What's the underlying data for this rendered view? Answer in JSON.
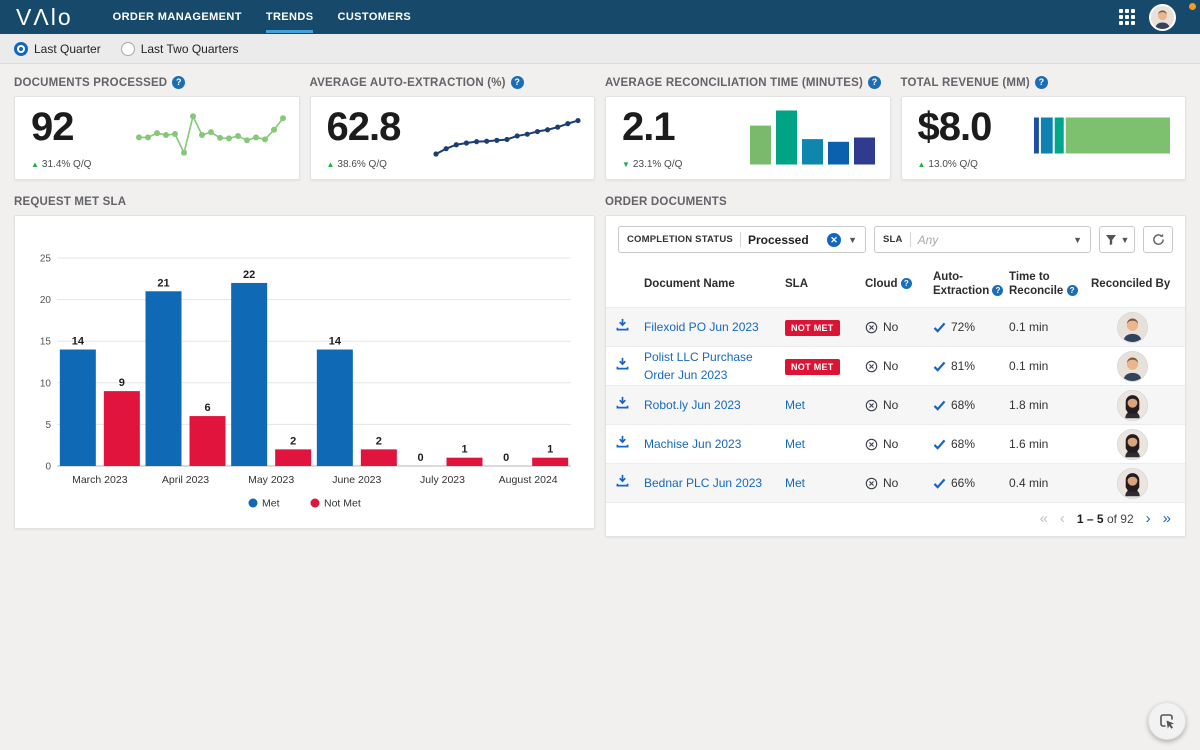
{
  "brand": {
    "logo": "VΛlo"
  },
  "navbar": {
    "items": [
      {
        "label": "ORDER MANAGEMENT",
        "active": false
      },
      {
        "label": "TRENDS",
        "active": true
      },
      {
        "label": "CUSTOMERS",
        "active": false
      }
    ]
  },
  "period_bar": {
    "options": [
      {
        "label": "Last Quarter",
        "selected": true
      },
      {
        "label": "Last Two Quarters",
        "selected": false
      }
    ]
  },
  "kpis": [
    {
      "title": "DOCUMENTS PROCESSED",
      "value": "92",
      "change": "31.4% Q/Q",
      "direction": "up"
    },
    {
      "title": "AVERAGE AUTO-EXTRACTION (%)",
      "value": "62.8",
      "change": "38.6% Q/Q",
      "direction": "up"
    },
    {
      "title": "AVERAGE RECONCILIATION TIME (MINUTES)",
      "value": "2.1",
      "change": "23.1% Q/Q",
      "direction": "down"
    },
    {
      "title": "TOTAL REVENUE (MM)",
      "value": "$8.0",
      "change": "13.0% Q/Q",
      "direction": "up"
    }
  ],
  "chart_data": [
    {
      "id": "documents_sparkline",
      "type": "line",
      "title": "Documents processed trend (unlabeled sparkline)",
      "color": "#85c878",
      "values": [
        46,
        46,
        55,
        51,
        53,
        14,
        90,
        51,
        57,
        45,
        44,
        49,
        40,
        46,
        42,
        62,
        86
      ]
    },
    {
      "id": "extraction_sparkline",
      "type": "line",
      "title": "Average auto-extraction trend (unlabeled sparkline)",
      "color": "#1c3e70",
      "values": [
        8,
        20,
        29,
        33,
        36,
        37,
        39,
        41,
        49,
        53,
        59,
        63,
        69,
        77,
        84
      ]
    },
    {
      "id": "reconciliation_minibar",
      "type": "bar",
      "title": "Average reconciliation time mini bars (unlabeled, relative heights %)",
      "values": [
        72,
        100,
        47,
        42,
        50
      ],
      "colors": [
        "#79ba6c",
        "#00a383",
        "#0e86ae",
        "#0b61ad",
        "#2e3b8e"
      ]
    },
    {
      "id": "revenue_stacked_bar",
      "type": "bar",
      "title": "Total revenue composition (unlabeled stacked bar, % of width)",
      "segments": [
        {
          "value": 5,
          "color": "#1c4ea1"
        },
        {
          "value": 10,
          "color": "#0e80b2"
        },
        {
          "value": 8,
          "color": "#00a88b"
        },
        {
          "value": 77,
          "color": "#7dc16f"
        }
      ]
    },
    {
      "id": "request_met_sla",
      "type": "bar",
      "title": "REQUEST MET SLA",
      "categories": [
        "March 2023",
        "April 2023",
        "May 2023",
        "June 2023",
        "July 2023",
        "August 2024"
      ],
      "series": [
        {
          "name": "Met",
          "color": "#0f69b4",
          "values": [
            14,
            21,
            22,
            14,
            0,
            0
          ]
        },
        {
          "name": "Not Met",
          "color": "#e0143c",
          "values": [
            9,
            6,
            2,
            2,
            1,
            1
          ]
        }
      ],
      "ylim": [
        0,
        25
      ],
      "yticks": [
        0,
        5,
        10,
        15,
        20,
        25
      ],
      "grid": true,
      "legend_position": "bottom"
    }
  ],
  "sla_panel": {
    "title": "REQUEST MET SLA"
  },
  "orders_panel": {
    "title": "ORDER DOCUMENTS",
    "filters": {
      "completion_status": {
        "label": "COMPLETION STATUS",
        "value": "Processed"
      },
      "sla": {
        "label": "SLA",
        "placeholder": "Any"
      }
    },
    "table": {
      "columns": [
        {
          "label": "Document Name",
          "help": false
        },
        {
          "label": "SLA",
          "help": false
        },
        {
          "label": "Cloud",
          "help": true
        },
        {
          "label": "Auto-Extraction",
          "help": true
        },
        {
          "label": "Time to Reconcile",
          "help": true
        },
        {
          "label": "Reconciled By",
          "help": false
        }
      ],
      "rows": [
        {
          "name": "Filexoid PO Jun 2023",
          "sla": "NOT MET",
          "cloud": "No",
          "extraction": "72%",
          "time": "0.1 min",
          "avatar": "male"
        },
        {
          "name": "Polist LLC Purchase Order Jun 2023",
          "sla": "NOT MET",
          "cloud": "No",
          "extraction": "81%",
          "time": "0.1 min",
          "avatar": "male"
        },
        {
          "name": "Robot.ly Jun 2023",
          "sla": "Met",
          "cloud": "No",
          "extraction": "68%",
          "time": "1.8 min",
          "avatar": "female"
        },
        {
          "name": "Machise Jun 2023",
          "sla": "Met",
          "cloud": "No",
          "extraction": "68%",
          "time": "1.6 min",
          "avatar": "female"
        },
        {
          "name": "Bednar PLC Jun 2023",
          "sla": "Met",
          "cloud": "No",
          "extraction": "66%",
          "time": "0.4 min",
          "avatar": "female"
        }
      ],
      "pagination": {
        "range": "1 – 5",
        "of_text": "of 92"
      }
    }
  },
  "colors": {
    "navbar": "#17496b",
    "active_tab_underline": "#45a1d8",
    "accent_blue": "#1668c0",
    "badge_red": "#dc1334",
    "positive_green": "#1fae49",
    "met_bar": "#0f69b4",
    "not_met_bar": "#e0143c"
  }
}
